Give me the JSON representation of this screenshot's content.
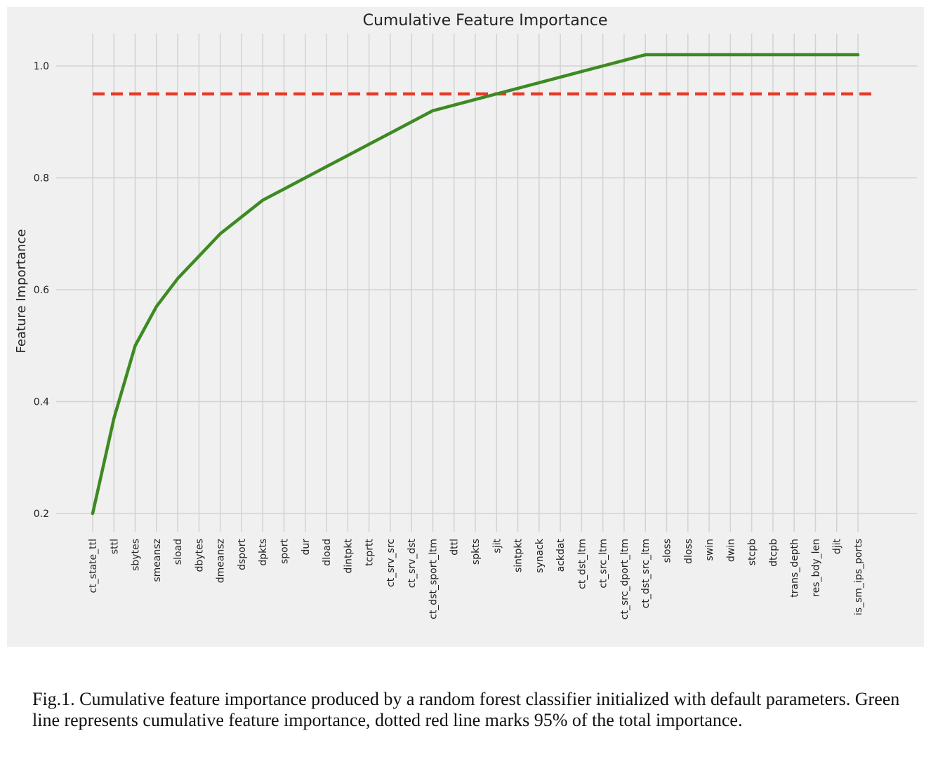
{
  "chart_data": {
    "type": "line",
    "title": "Cumulative Feature Importance",
    "xlabel": "",
    "ylabel": "Feature Importance",
    "categories": [
      "ct_state_ttl",
      "sttl",
      "sbytes",
      "smeansz",
      "sload",
      "dbytes",
      "dmeansz",
      "dsport",
      "dpkts",
      "sport",
      "dur",
      "dload",
      "dintpkt",
      "tcprtt",
      "ct_srv_src",
      "ct_srv_dst",
      "ct_dst_sport_ltm",
      "dttl",
      "spkts",
      "sjit",
      "sintpkt",
      "synack",
      "ackdat",
      "ct_dst_ltm",
      "ct_src_ltm",
      "ct_src_dport_ltm",
      "ct_dst_src_ltm",
      "sloss",
      "dloss",
      "swin",
      "dwin",
      "stcpb",
      "dtcpb",
      "trans_depth",
      "res_bdy_len",
      "djit",
      "is_sm_ips_ports"
    ],
    "series": [
      {
        "values": [
          0.2,
          0.37,
          0.5,
          0.57,
          0.62,
          0.66,
          0.7,
          0.73,
          0.76,
          0.78,
          0.8,
          0.82,
          0.84,
          0.86,
          0.88,
          0.9,
          0.92,
          0.93,
          0.94,
          0.95,
          0.96,
          0.97,
          0.98,
          0.99,
          1.0,
          1.01,
          1.02,
          1.02,
          1.02,
          1.02,
          1.02,
          1.02,
          1.02,
          1.02,
          1.02,
          1.02,
          1.02
        ],
        "color": "#3d8a22"
      }
    ],
    "threshold": {
      "value": 0.95,
      "color": "#e8392a",
      "style": "dashed"
    },
    "yticks": [
      0.2,
      0.4,
      0.6,
      0.8,
      1.0
    ],
    "ytick_labels": [
      "0.2",
      "0.4",
      "0.6",
      "0.8",
      "1.0"
    ],
    "ylim": [
      0.16,
      1.07
    ],
    "grid": true,
    "legend": "none"
  },
  "caption": "Fig.1. Cumulative feature importance produced by a random forest classifier initialized with default parameters. Green line represents cumulative feature importance, dotted red line marks 95% of the total importance."
}
